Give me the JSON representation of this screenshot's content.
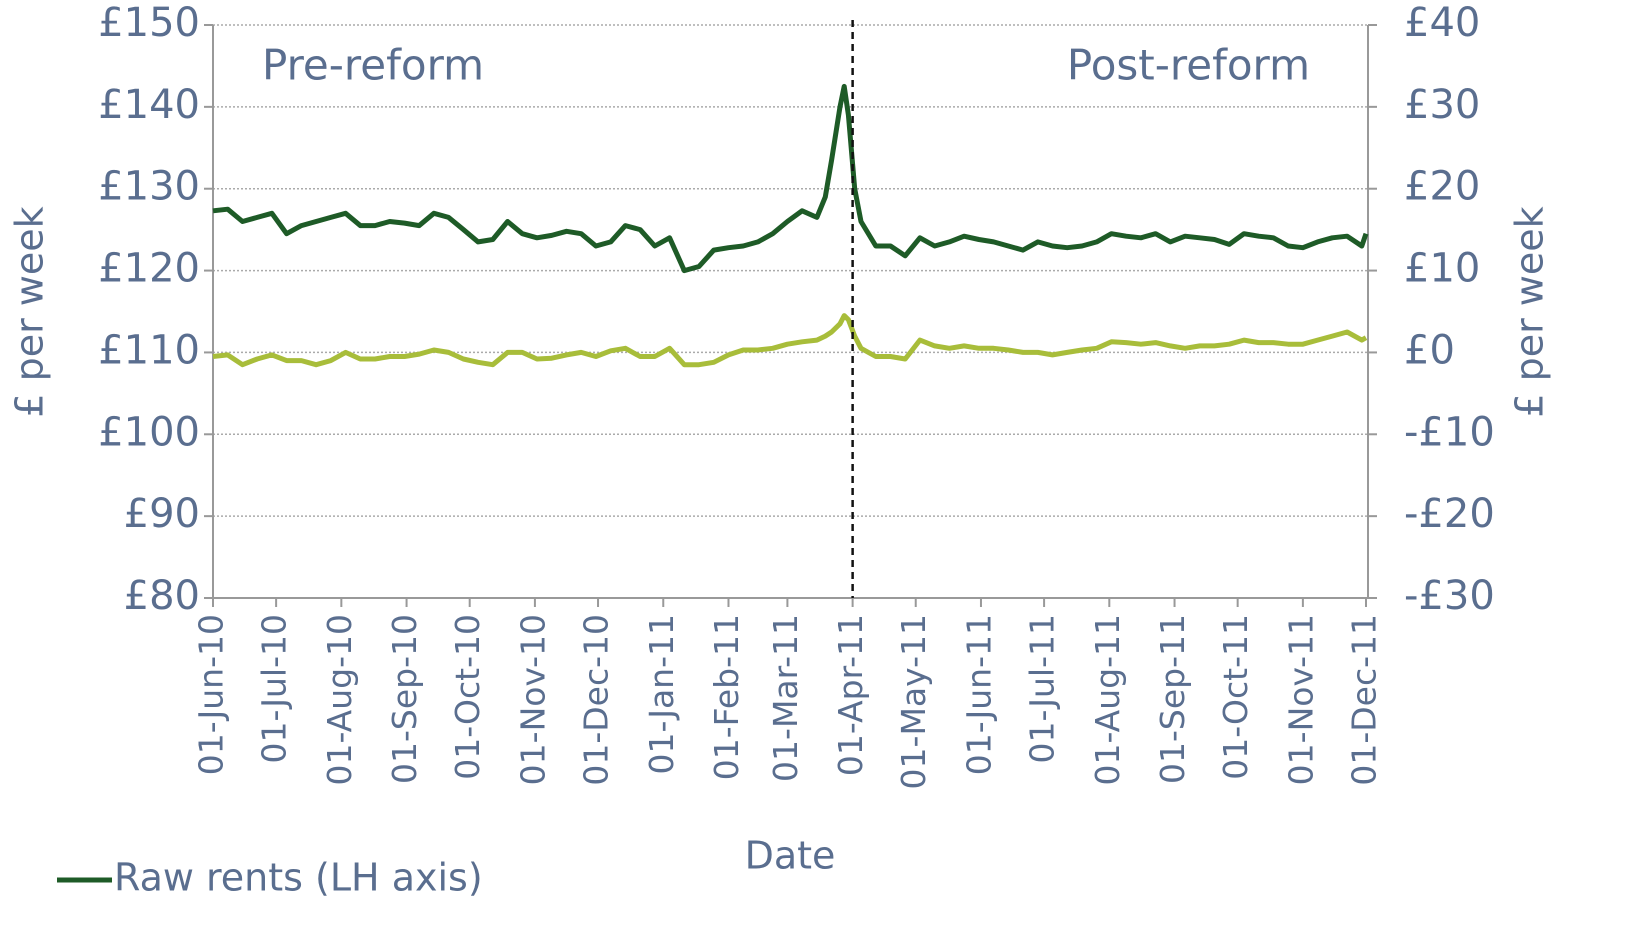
{
  "chart_data": {
    "type": "line",
    "annotations": [
      "Pre-reform",
      "Post-reform"
    ],
    "ylabel": "£ per week",
    "y2label": "£ per week",
    "xlabel": "Date",
    "legend": "bottom-left",
    "grid": true,
    "reference_line": {
      "x": "2011-04-01",
      "style": "dashed"
    },
    "xlim": [
      "2010-06-01",
      "2011-12-01"
    ],
    "xticks": [
      {
        "value": "2010-06-01",
        "label": "01-Jun-10"
      },
      {
        "value": "2010-07-01",
        "label": "01-Jul-10"
      },
      {
        "value": "2010-08-01",
        "label": "01-Aug-10"
      },
      {
        "value": "2010-09-01",
        "label": "01-Sep-10"
      },
      {
        "value": "2010-10-01",
        "label": "01-Oct-10"
      },
      {
        "value": "2010-11-01",
        "label": "01-Nov-10"
      },
      {
        "value": "2010-12-01",
        "label": "01-Dec-10"
      },
      {
        "value": "2011-01-01",
        "label": "01-Jan-11"
      },
      {
        "value": "2011-02-01",
        "label": "01-Feb-11"
      },
      {
        "value": "2011-03-01",
        "label": "01-Mar-11"
      },
      {
        "value": "2011-04-01",
        "label": "01-Apr-11"
      },
      {
        "value": "2011-05-01",
        "label": "01-May-11"
      },
      {
        "value": "2011-06-01",
        "label": "01-Jun-11"
      },
      {
        "value": "2011-07-01",
        "label": "01-Jul-11"
      },
      {
        "value": "2011-08-01",
        "label": "01-Aug-11"
      },
      {
        "value": "2011-09-01",
        "label": "01-Sep-11"
      },
      {
        "value": "2011-10-01",
        "label": "01-Oct-11"
      },
      {
        "value": "2011-11-01",
        "label": "01-Nov-11"
      },
      {
        "value": "2011-12-01",
        "label": "01-Dec-11"
      }
    ],
    "ylim": [
      80,
      150
    ],
    "yticks": [
      {
        "value": 80,
        "label": "£80"
      },
      {
        "value": 90,
        "label": "£90"
      },
      {
        "value": 100,
        "label": "£100"
      },
      {
        "value": 110,
        "label": "£110"
      },
      {
        "value": 120,
        "label": "£120"
      },
      {
        "value": 130,
        "label": "£130"
      },
      {
        "value": 140,
        "label": "£140"
      },
      {
        "value": 150,
        "label": "£150"
      }
    ],
    "y2lim": [
      -30,
      40
    ],
    "y2ticks": [
      {
        "value": -30,
        "label": "-£30"
      },
      {
        "value": -20,
        "label": "-£20"
      },
      {
        "value": -10,
        "label": "-£10"
      },
      {
        "value": 0,
        "label": "£0"
      },
      {
        "value": 10,
        "label": "£10"
      },
      {
        "value": 20,
        "label": "£20"
      },
      {
        "value": 30,
        "label": "£30"
      },
      {
        "value": 40,
        "label": "£40"
      }
    ],
    "x": [
      "2010-06-01",
      "2010-06-08",
      "2010-06-15",
      "2010-06-22",
      "2010-06-29",
      "2010-07-06",
      "2010-07-13",
      "2010-07-20",
      "2010-07-27",
      "2010-08-03",
      "2010-08-10",
      "2010-08-17",
      "2010-08-24",
      "2010-08-31",
      "2010-09-07",
      "2010-09-14",
      "2010-09-21",
      "2010-09-28",
      "2010-10-05",
      "2010-10-12",
      "2010-10-19",
      "2010-10-26",
      "2010-11-02",
      "2010-11-09",
      "2010-11-16",
      "2010-11-23",
      "2010-11-30",
      "2010-12-07",
      "2010-12-14",
      "2010-12-21",
      "2010-12-28",
      "2011-01-04",
      "2011-01-11",
      "2011-01-18",
      "2011-01-25",
      "2011-02-01",
      "2011-02-08",
      "2011-02-15",
      "2011-02-22",
      "2011-03-01",
      "2011-03-08",
      "2011-03-15",
      "2011-03-19",
      "2011-03-22",
      "2011-03-26",
      "2011-03-28",
      "2011-03-30",
      "2011-04-02",
      "2011-04-05",
      "2011-04-12",
      "2011-04-19",
      "2011-04-26",
      "2011-05-03",
      "2011-05-10",
      "2011-05-17",
      "2011-05-24",
      "2011-05-31",
      "2011-06-07",
      "2011-06-14",
      "2011-06-21",
      "2011-06-28",
      "2011-07-05",
      "2011-07-12",
      "2011-07-19",
      "2011-07-26",
      "2011-08-02",
      "2011-08-09",
      "2011-08-16",
      "2011-08-23",
      "2011-08-30",
      "2011-09-06",
      "2011-09-13",
      "2011-09-20",
      "2011-09-27",
      "2011-10-04",
      "2011-10-11",
      "2011-10-18",
      "2011-10-25",
      "2011-11-01",
      "2011-11-08",
      "2011-11-15",
      "2011-11-22",
      "2011-11-29",
      "2011-12-01"
    ],
    "series": [
      {
        "name": "Raw rents (LH axis)",
        "color": "#1e5b27",
        "axis": "y",
        "values": [
          127.3,
          127.5,
          126,
          126.5,
          127,
          124.5,
          125.5,
          126,
          126.5,
          127,
          125.5,
          125.5,
          126,
          125.8,
          125.5,
          127,
          126.5,
          125,
          123.5,
          123.8,
          126,
          124.5,
          124,
          124.3,
          124.8,
          124.5,
          123,
          123.5,
          125.5,
          125,
          123,
          124,
          120,
          120.5,
          122.5,
          122.8,
          123,
          123.5,
          124.5,
          126,
          127.3,
          126.5,
          129,
          133.5,
          140,
          142.5,
          139,
          130,
          126,
          123,
          123,
          121.8,
          124,
          123,
          123.5,
          124.2,
          123.8,
          123.5,
          123,
          122.5,
          123.5,
          123,
          122.8,
          123,
          123.5,
          124.5,
          124.2,
          124,
          124.5,
          123.5,
          124.2,
          124,
          123.8,
          123.2,
          124.5,
          124.2,
          124,
          123,
          122.8,
          123.5,
          124,
          124.2,
          123,
          124.5
        ]
      },
      {
        "color": "#a8bd3a",
        "axis": "y2",
        "values": [
          -0.5,
          -0.3,
          -1.5,
          -0.8,
          -0.3,
          -1,
          -1,
          -1.5,
          -1,
          0,
          -0.8,
          -0.8,
          -0.5,
          -0.5,
          -0.2,
          0.3,
          0,
          -0.8,
          -1.2,
          -1.5,
          0,
          0,
          -0.8,
          -0.7,
          -0.3,
          0,
          -0.5,
          0.2,
          0.5,
          -0.5,
          -0.5,
          0.5,
          -1.5,
          -1.5,
          -1.2,
          -0.3,
          0.3,
          0.3,
          0.5,
          1,
          1.3,
          1.5,
          2,
          2.5,
          3.5,
          4.5,
          4,
          2,
          0.5,
          -0.5,
          -0.5,
          -0.8,
          1.5,
          0.8,
          0.5,
          0.8,
          0.5,
          0.5,
          0.3,
          0,
          0,
          -0.3,
          0,
          0.3,
          0.5,
          1.3,
          1.2,
          1,
          1.2,
          0.8,
          0.5,
          0.8,
          0.8,
          1,
          1.5,
          1.2,
          1.2,
          1,
          1,
          1.5,
          2,
          2.5,
          1.5,
          1.8
        ]
      }
    ]
  }
}
